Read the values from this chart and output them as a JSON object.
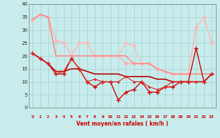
{
  "bg_color": "#c8ecec",
  "grid_color": "#aad4d4",
  "ylim": [
    0,
    40
  ],
  "yticks": [
    0,
    5,
    10,
    15,
    20,
    25,
    30,
    35,
    40
  ],
  "xlabel": "Vent moyen/en rafales ( km/h )",
  "x_labels": [
    "0",
    "1",
    "2",
    "3",
    "4",
    "5",
    "6",
    "7",
    "8",
    "9",
    "10",
    "11",
    "12",
    "13",
    "14",
    "15",
    "16",
    "17",
    "18",
    "19",
    "20",
    "21",
    "22",
    "23"
  ],
  "wind_arrows": [
    "↑",
    "↗",
    "↑",
    "↑",
    "↙",
    "↗",
    "↗",
    "↗",
    "↙",
    "↑",
    "↙",
    "↑",
    "↓",
    "↘",
    "↘",
    "↙",
    "←",
    "↗",
    "↗",
    "↙",
    "↙",
    "↙",
    "↙",
    "↖"
  ],
  "lines": [
    {
      "y": [
        34,
        36,
        35,
        26,
        25,
        20,
        25,
        25,
        20,
        20,
        20,
        20,
        17,
        17,
        17,
        17,
        15,
        14,
        13,
        13,
        13,
        31,
        35,
        25
      ],
      "color": "#ffaaaa",
      "lw": 1.0,
      "marker": "o",
      "ms": 2.5,
      "zorder": 2
    },
    {
      "y": [
        34,
        36,
        35,
        26,
        25,
        20,
        25,
        25,
        20,
        20,
        20,
        20,
        25,
        24,
        17,
        17,
        15,
        14,
        13,
        13,
        13,
        31,
        35,
        25
      ],
      "color": "#ffbbbb",
      "lw": 1.0,
      "marker": "o",
      "ms": 2.5,
      "zorder": 2
    },
    {
      "y": [
        34,
        36,
        35,
        20,
        20,
        20,
        20,
        20,
        20,
        20,
        20,
        20,
        20,
        17,
        17,
        17,
        15,
        14,
        13,
        13,
        13,
        13,
        13,
        13
      ],
      "color": "#ff8888",
      "lw": 1.2,
      "marker": null,
      "ms": 0,
      "zorder": 2
    },
    {
      "y": [
        21,
        19,
        17,
        13,
        13,
        19,
        15,
        10,
        8,
        10,
        10,
        3,
        6,
        7,
        10,
        6,
        6,
        8,
        8,
        10,
        10,
        23,
        10,
        13
      ],
      "color": "#cc0000",
      "lw": 1.0,
      "marker": "+",
      "ms": 4,
      "zorder": 4
    },
    {
      "y": [
        21,
        19,
        17,
        14,
        14,
        15,
        15,
        14,
        13,
        13,
        13,
        13,
        12,
        12,
        12,
        12,
        11,
        11,
        10,
        10,
        10,
        10,
        10,
        13
      ],
      "color": "#bb0000",
      "lw": 1.2,
      "marker": null,
      "ms": 0,
      "zorder": 3
    },
    {
      "y": [
        21,
        19,
        17,
        13,
        14,
        19,
        15,
        10,
        11,
        10,
        10,
        10,
        12,
        10,
        10,
        8,
        7,
        8,
        10,
        10,
        10,
        10,
        10,
        13
      ],
      "color": "#dd2222",
      "lw": 0.8,
      "marker": "+",
      "ms": 3,
      "zorder": 4
    }
  ]
}
